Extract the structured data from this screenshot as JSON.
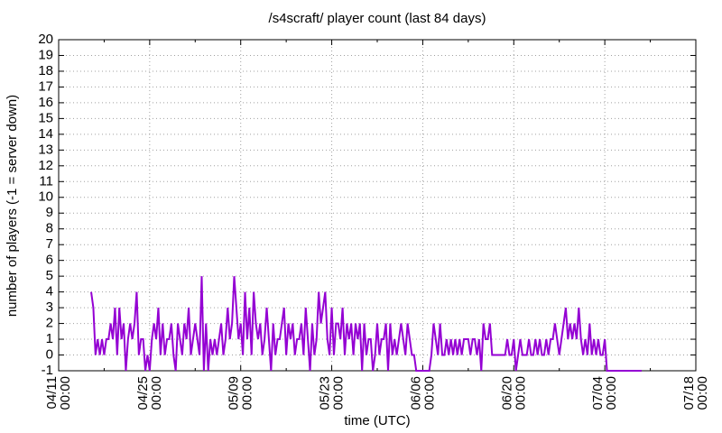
{
  "chart_data": {
    "type": "line",
    "title": "/s4scraft/ player count (last 84 days)",
    "x_label": "time (UTC)",
    "y_label": "number of players (-1 = server down)",
    "color": "#9400d3",
    "grid": true,
    "xlim": [
      "04/11 00:00",
      "07/18 00:00"
    ],
    "xticks": [
      "04/11 00:00",
      "04/25 00:00",
      "05/09 00:00",
      "05/23 00:00",
      "06/06 00:00",
      "06/20 00:00",
      "07/04 00:00",
      "07/18 00:00"
    ],
    "ylim": [
      -1,
      20
    ],
    "yticks": [
      -1,
      0,
      1,
      2,
      3,
      4,
      5,
      6,
      7,
      8,
      9,
      10,
      11,
      12,
      13,
      14,
      15,
      16,
      17,
      18,
      19,
      20
    ],
    "x": [
      "04/16 00:00",
      "04/16 08:00",
      "04/16 16:00",
      "04/17 00:00",
      "04/17 08:00",
      "04/17 16:00",
      "04/18 00:00",
      "04/18 08:00",
      "04/18 16:00",
      "04/19 00:00",
      "04/19 08:00",
      "04/19 16:00",
      "04/20 00:00",
      "04/20 08:00",
      "04/20 16:00",
      "04/21 00:00",
      "04/21 08:00",
      "04/21 16:00",
      "04/22 00:00",
      "04/22 08:00",
      "04/22 16:00",
      "04/23 00:00",
      "04/23 08:00",
      "04/23 16:00",
      "04/24 00:00",
      "04/24 08:00",
      "04/24 16:00",
      "04/25 00:00",
      "04/25 08:00",
      "04/25 16:00",
      "04/26 00:00",
      "04/26 08:00",
      "04/26 16:00",
      "04/27 00:00",
      "04/27 08:00",
      "04/27 16:00",
      "04/28 00:00",
      "04/28 08:00",
      "04/28 16:00",
      "04/29 00:00",
      "04/29 08:00",
      "04/29 16:00",
      "04/30 00:00",
      "04/30 08:00",
      "04/30 16:00",
      "05/01 00:00",
      "05/01 08:00",
      "05/01 16:00",
      "05/02 00:00",
      "05/02 08:00",
      "05/02 16:00",
      "05/03 00:00",
      "05/03 08:00",
      "05/03 16:00",
      "05/04 00:00",
      "05/04 08:00",
      "05/04 16:00",
      "05/05 00:00",
      "05/05 08:00",
      "05/05 16:00",
      "05/06 00:00",
      "05/06 08:00",
      "05/06 16:00",
      "05/07 00:00",
      "05/07 08:00",
      "05/07 16:00",
      "05/08 00:00",
      "05/08 08:00",
      "05/08 16:00",
      "05/09 00:00",
      "05/09 08:00",
      "05/09 16:00",
      "05/10 00:00",
      "05/10 08:00",
      "05/10 16:00",
      "05/11 00:00",
      "05/11 08:00",
      "05/11 16:00",
      "05/12 00:00",
      "05/12 08:00",
      "05/12 16:00",
      "05/13 00:00",
      "05/13 08:00",
      "05/13 16:00",
      "05/14 00:00",
      "05/14 08:00",
      "05/14 16:00",
      "05/15 00:00",
      "05/15 08:00",
      "05/15 16:00",
      "05/16 00:00",
      "05/16 08:00",
      "05/16 16:00",
      "05/17 00:00",
      "05/17 08:00",
      "05/17 16:00",
      "05/18 00:00",
      "05/18 08:00",
      "05/18 16:00",
      "05/19 00:00",
      "05/19 08:00",
      "05/19 16:00",
      "05/20 00:00",
      "05/20 08:00",
      "05/20 16:00",
      "05/21 00:00",
      "05/21 08:00",
      "05/21 16:00",
      "05/22 00:00",
      "05/22 08:00",
      "05/22 16:00",
      "05/23 00:00",
      "05/23 08:00",
      "05/23 16:00",
      "05/24 00:00",
      "05/24 08:00",
      "05/24 16:00",
      "05/25 00:00",
      "05/25 08:00",
      "05/25 16:00",
      "05/26 00:00",
      "05/26 08:00",
      "05/26 16:00",
      "05/27 00:00",
      "05/27 08:00",
      "05/27 16:00",
      "05/28 00:00",
      "05/28 08:00",
      "05/28 16:00",
      "05/29 00:00",
      "05/29 08:00",
      "05/29 16:00",
      "05/30 00:00",
      "05/30 08:00",
      "05/30 16:00",
      "05/31 00:00",
      "05/31 08:00",
      "05/31 16:00",
      "06/01 00:00",
      "06/01 08:00",
      "06/01 16:00",
      "06/02 00:00",
      "06/02 08:00",
      "06/02 16:00",
      "06/03 00:00",
      "06/03 08:00",
      "06/03 16:00",
      "06/04 00:00",
      "06/04 08:00",
      "06/04 16:00",
      "06/05 00:00",
      "06/05 08:00",
      "06/05 16:00",
      "06/06 00:00",
      "06/06 08:00",
      "06/06 16:00",
      "06/07 00:00",
      "06/07 08:00",
      "06/07 16:00",
      "06/08 00:00",
      "06/08 08:00",
      "06/08 16:00",
      "06/09 00:00",
      "06/09 08:00",
      "06/09 16:00",
      "06/10 00:00",
      "06/10 08:00",
      "06/10 16:00",
      "06/11 00:00",
      "06/11 08:00",
      "06/11 16:00",
      "06/12 00:00",
      "06/12 08:00",
      "06/12 16:00",
      "06/13 00:00",
      "06/13 08:00",
      "06/13 16:00",
      "06/14 00:00",
      "06/14 08:00",
      "06/14 16:00",
      "06/15 00:00",
      "06/15 08:00",
      "06/15 16:00",
      "06/16 00:00",
      "06/16 08:00",
      "06/16 16:00",
      "06/17 00:00",
      "06/17 08:00",
      "06/17 16:00",
      "06/18 00:00",
      "06/18 08:00",
      "06/18 16:00",
      "06/19 00:00",
      "06/19 08:00",
      "06/19 16:00",
      "06/20 00:00",
      "06/20 08:00",
      "06/20 16:00",
      "06/21 00:00",
      "06/21 08:00",
      "06/21 16:00",
      "06/22 00:00",
      "06/22 08:00",
      "06/22 16:00",
      "06/23 00:00",
      "06/23 08:00",
      "06/23 16:00",
      "06/24 00:00",
      "06/24 08:00",
      "06/24 16:00",
      "06/25 00:00",
      "06/25 08:00",
      "06/25 16:00",
      "06/26 00:00",
      "06/26 08:00",
      "06/26 16:00",
      "06/27 00:00",
      "06/27 08:00",
      "06/27 16:00",
      "06/28 00:00",
      "06/28 08:00",
      "06/28 16:00",
      "06/29 00:00",
      "06/29 08:00",
      "06/29 16:00",
      "06/30 00:00",
      "06/30 08:00",
      "06/30 16:00",
      "07/01 00:00",
      "07/01 08:00",
      "07/01 16:00",
      "07/02 00:00",
      "07/02 08:00",
      "07/02 16:00",
      "07/03 00:00",
      "07/03 08:00",
      "07/03 16:00",
      "07/04 00:00",
      "07/04 08:00",
      "07/04 16:00",
      "07/05 00:00",
      "07/06 00:00",
      "07/07 00:00",
      "07/08 00:00",
      "07/09 00:00",
      "07/09 16:00"
    ],
    "values": [
      4,
      3,
      0,
      1,
      0,
      1,
      0,
      1,
      1,
      2,
      1,
      3,
      0,
      3,
      1,
      2,
      -1,
      1,
      2,
      1,
      2,
      4,
      0,
      1,
      1,
      -1,
      0,
      -1,
      1,
      2,
      1,
      3,
      0,
      2,
      0,
      1,
      1,
      2,
      0,
      -1,
      2,
      1,
      0,
      2,
      1,
      3,
      0,
      1,
      2,
      1,
      0,
      5,
      -1,
      2,
      -1,
      1,
      0,
      1,
      0,
      1,
      2,
      0,
      1,
      3,
      1,
      2,
      5,
      3,
      1,
      2,
      0,
      4,
      1,
      3,
      0,
      4,
      2,
      1,
      2,
      0,
      1,
      3,
      1,
      -1,
      2,
      0,
      1,
      1,
      2,
      3,
      0,
      2,
      1,
      2,
      0,
      1,
      1,
      2,
      0,
      3,
      1,
      -1,
      2,
      0,
      1,
      4,
      2,
      3,
      4,
      1,
      0,
      3,
      0,
      2,
      2,
      1,
      3,
      0,
      2,
      1,
      2,
      0,
      2,
      1,
      2,
      -1,
      2,
      0,
      1,
      1,
      -1,
      0,
      2,
      0,
      1,
      1,
      2,
      -1,
      2,
      0,
      1,
      0,
      1,
      2,
      1,
      0,
      2,
      1,
      0,
      0,
      -1,
      -1,
      -1,
      -1,
      -1,
      -1,
      -1,
      0,
      2,
      1,
      0,
      2,
      0,
      0,
      1,
      0,
      1,
      0,
      1,
      0,
      1,
      0,
      1,
      1,
      1,
      0,
      1,
      1,
      0,
      1,
      -1,
      2,
      1,
      1,
      2,
      0,
      0,
      0,
      0,
      0,
      0,
      0,
      1,
      0,
      0,
      1,
      -1,
      0,
      1,
      0,
      0,
      0,
      1,
      0,
      0,
      1,
      0,
      1,
      0,
      0,
      1,
      0,
      1,
      1,
      2,
      1,
      0,
      1,
      2,
      3,
      1,
      2,
      1,
      2,
      1,
      3,
      1,
      0,
      1,
      0,
      2,
      0,
      1,
      0,
      1,
      0,
      0,
      1,
      -1,
      -1,
      -1,
      -1,
      -1,
      -1,
      -1,
      -1
    ]
  }
}
